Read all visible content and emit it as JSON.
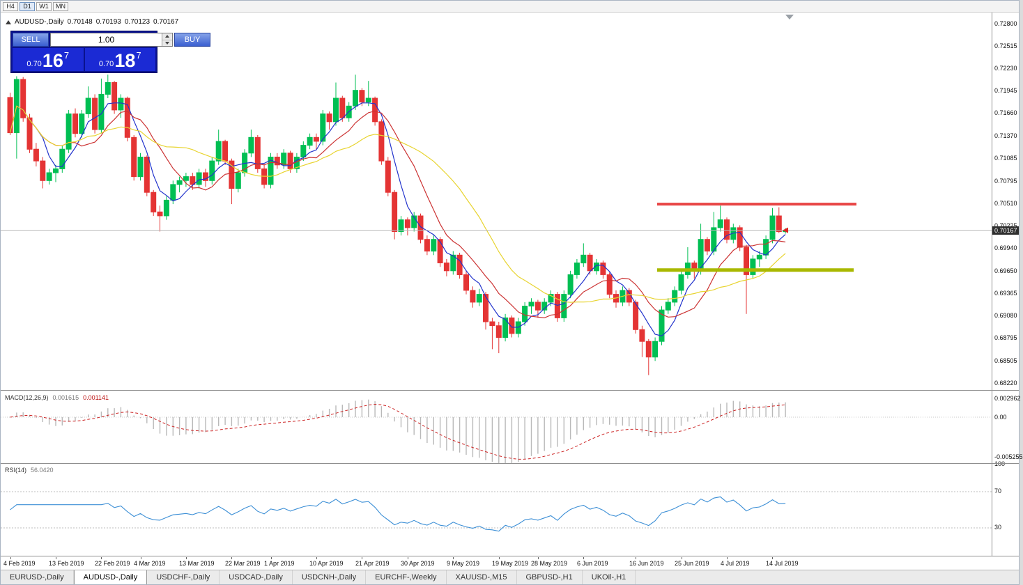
{
  "toolbar": {
    "timeframes": [
      {
        "label": "H4",
        "active": false
      },
      {
        "label": "D1",
        "active": true
      },
      {
        "label": "W1",
        "active": false
      },
      {
        "label": "MN",
        "active": false
      }
    ]
  },
  "chart_header": {
    "symbol": "AUDUSD-,Daily",
    "open": "0.70148",
    "high": "0.70193",
    "low": "0.70123",
    "close": "0.70167"
  },
  "trade_panel": {
    "sell_label": "SELL",
    "buy_label": "BUY",
    "volume": "1.00",
    "sell": {
      "prefix": "0.70",
      "big": "16",
      "sup": "7"
    },
    "buy": {
      "prefix": "0.70",
      "big": "18",
      "sup": "7"
    }
  },
  "price_axis": {
    "labels": [
      "0.72800",
      "0.72515",
      "0.72230",
      "0.71945",
      "0.71660",
      "0.71370",
      "0.71085",
      "0.70795",
      "0.70510",
      "0.70225",
      "0.69940",
      "0.69650",
      "0.69365",
      "0.69080",
      "0.68795",
      "0.68505",
      "0.68220"
    ],
    "current": "0.70167"
  },
  "macd": {
    "name_label": "MACD(12,26,9)",
    "value": "0.001615",
    "signal_value": "0.001141",
    "axis_top": "0.002962",
    "axis_zero": "0.00",
    "axis_bottom": "-0.005255",
    "scale_max": 0.002962,
    "scale_min": -0.005255
  },
  "rsi": {
    "name_label": "RSI(14)",
    "value": "56.0420",
    "period": 14,
    "levels": [
      70,
      30
    ],
    "axis_labels": [
      {
        "text": "100",
        "value": 100
      },
      {
        "text": "70",
        "value": 70
      },
      {
        "text": "30",
        "value": 30
      }
    ]
  },
  "date_axis": {
    "labels": [
      {
        "text": "4 Feb 2019",
        "bar": 0
      },
      {
        "text": "13 Feb 2019",
        "bar": 7
      },
      {
        "text": "22 Feb 2019",
        "bar": 14
      },
      {
        "text": "4 Mar 2019",
        "bar": 20
      },
      {
        "text": "13 Mar 2019",
        "bar": 27
      },
      {
        "text": "22 Mar 2019",
        "bar": 34
      },
      {
        "text": "1 Apr 2019",
        "bar": 40
      },
      {
        "text": "10 Apr 2019",
        "bar": 47
      },
      {
        "text": "21 Apr 2019",
        "bar": 54
      },
      {
        "text": "30 Apr 2019",
        "bar": 61
      },
      {
        "text": "9 May 2019",
        "bar": 68
      },
      {
        "text": "19 May 2019",
        "bar": 75
      },
      {
        "text": "28 May 2019",
        "bar": 81
      },
      {
        "text": "6 Jun 2019",
        "bar": 88
      },
      {
        "text": "16 Jun 2019",
        "bar": 96
      },
      {
        "text": "25 Jun 2019",
        "bar": 103
      },
      {
        "text": "4 Jul 2019",
        "bar": 110
      },
      {
        "text": "14 Jul 2019",
        "bar": 117
      }
    ]
  },
  "tabs": [
    {
      "label": "EURUSD-,Daily",
      "active": false
    },
    {
      "label": "AUDUSD-,Daily",
      "active": true
    },
    {
      "label": "USDCHF-,Daily",
      "active": false
    },
    {
      "label": "USDCAD-,Daily",
      "active": false
    },
    {
      "label": "USDCNH-,Daily",
      "active": false
    },
    {
      "label": "EURCHF-,Weekly",
      "active": false
    },
    {
      "label": "XAUUSD-,M15",
      "active": false
    },
    {
      "label": "GBPUSD-,H1",
      "active": false
    },
    {
      "label": "UKOil-,H1",
      "active": false
    }
  ],
  "colors": {
    "bull": "#00bf53",
    "bear": "#e43434",
    "ma_fast": "#2233cc",
    "ma_mid": "#cc3333",
    "ma_slow": "#e8d430",
    "resistance": "#e84545",
    "support": "#a9b800",
    "macd_hist": "#b9b9b9",
    "macd_signal": "#cc2222",
    "rsi_line": "#3c8fd6",
    "price_line": "#b8b8b8",
    "price_tag_bg": "#2e2e2e"
  },
  "chart_data": {
    "type": "candlestick",
    "symbol": "AUDUSD",
    "timeframe": "Daily",
    "ylim": [
      0.6822,
      0.728
    ],
    "current_price": 0.70167,
    "ma": [
      {
        "name": "fast",
        "period": 5,
        "color": "#2233cc"
      },
      {
        "name": "mid",
        "period": 10,
        "color": "#cc3333"
      },
      {
        "name": "slow",
        "period": 20,
        "color": "#e8d430"
      }
    ],
    "hlines": [
      {
        "name": "resistance",
        "price": 0.705,
        "x1": 942,
        "x2": 1228,
        "color": "#e84545",
        "width": 4
      },
      {
        "name": "support",
        "price": 0.6966,
        "x1": 942,
        "x2": 1224,
        "color": "#a9b800",
        "width": 5
      }
    ],
    "candles": [
      [
        0.7186,
        0.7192,
        0.7138,
        0.7141
      ],
      [
        0.7141,
        0.7213,
        0.7108,
        0.7209
      ],
      [
        0.7209,
        0.7212,
        0.7155,
        0.716
      ],
      [
        0.716,
        0.7165,
        0.7115,
        0.712
      ],
      [
        0.712,
        0.7128,
        0.7098,
        0.7105
      ],
      [
        0.7105,
        0.711,
        0.707,
        0.708
      ],
      [
        0.708,
        0.7095,
        0.7075,
        0.709
      ],
      [
        0.709,
        0.71,
        0.7078,
        0.7095
      ],
      [
        0.7095,
        0.7125,
        0.709,
        0.712
      ],
      [
        0.712,
        0.717,
        0.7115,
        0.7165
      ],
      [
        0.7165,
        0.7172,
        0.7135,
        0.714
      ],
      [
        0.714,
        0.717,
        0.7135,
        0.7165
      ],
      [
        0.7165,
        0.72,
        0.716,
        0.7185
      ],
      [
        0.7185,
        0.719,
        0.714,
        0.7145
      ],
      [
        0.7145,
        0.721,
        0.714,
        0.719
      ],
      [
        0.719,
        0.7215,
        0.7185,
        0.7205
      ],
      [
        0.7205,
        0.7207,
        0.7165,
        0.717
      ],
      [
        0.717,
        0.719,
        0.716,
        0.7185
      ],
      [
        0.7185,
        0.7187,
        0.713,
        0.7135
      ],
      [
        0.7135,
        0.7138,
        0.708,
        0.7085
      ],
      [
        0.7085,
        0.7115,
        0.708,
        0.711
      ],
      [
        0.711,
        0.7112,
        0.706,
        0.7065
      ],
      [
        0.7065,
        0.7068,
        0.7035,
        0.704
      ],
      [
        0.704,
        0.7048,
        0.7015,
        0.7035
      ],
      [
        0.7035,
        0.706,
        0.703,
        0.7055
      ],
      [
        0.7055,
        0.708,
        0.705,
        0.7075
      ],
      [
        0.7075,
        0.7085,
        0.7065,
        0.708
      ],
      [
        0.708,
        0.709,
        0.7072,
        0.7085
      ],
      [
        0.7085,
        0.709,
        0.7068,
        0.7075
      ],
      [
        0.7075,
        0.7095,
        0.707,
        0.709
      ],
      [
        0.709,
        0.7095,
        0.7072,
        0.708
      ],
      [
        0.708,
        0.711,
        0.7075,
        0.7105
      ],
      [
        0.7105,
        0.7145,
        0.71,
        0.713
      ],
      [
        0.713,
        0.7132,
        0.71,
        0.7105
      ],
      [
        0.7105,
        0.7108,
        0.705,
        0.707
      ],
      [
        0.707,
        0.7095,
        0.7065,
        0.709
      ],
      [
        0.709,
        0.712,
        0.7085,
        0.7115
      ],
      [
        0.7115,
        0.7145,
        0.711,
        0.7135
      ],
      [
        0.7135,
        0.7138,
        0.709,
        0.7095
      ],
      [
        0.7095,
        0.71,
        0.707,
        0.7075
      ],
      [
        0.7075,
        0.7115,
        0.707,
        0.711
      ],
      [
        0.711,
        0.7115,
        0.7095,
        0.71
      ],
      [
        0.71,
        0.712,
        0.7095,
        0.7115
      ],
      [
        0.7115,
        0.7118,
        0.709,
        0.7095
      ],
      [
        0.7095,
        0.7115,
        0.709,
        0.711
      ],
      [
        0.711,
        0.713,
        0.7105,
        0.7125
      ],
      [
        0.7125,
        0.714,
        0.712,
        0.7135
      ],
      [
        0.7135,
        0.714,
        0.712,
        0.713
      ],
      [
        0.713,
        0.717,
        0.7125,
        0.7165
      ],
      [
        0.7165,
        0.7168,
        0.7145,
        0.7155
      ],
      [
        0.7155,
        0.7205,
        0.715,
        0.7185
      ],
      [
        0.7185,
        0.7188,
        0.7155,
        0.716
      ],
      [
        0.716,
        0.718,
        0.7155,
        0.7175
      ],
      [
        0.7175,
        0.7215,
        0.717,
        0.7195
      ],
      [
        0.7195,
        0.7198,
        0.7175,
        0.718
      ],
      [
        0.718,
        0.7207,
        0.7175,
        0.7185
      ],
      [
        0.7185,
        0.7187,
        0.715,
        0.7155
      ],
      [
        0.7155,
        0.7158,
        0.71,
        0.7105
      ],
      [
        0.7105,
        0.711,
        0.706,
        0.7065
      ],
      [
        0.7065,
        0.7068,
        0.7005,
        0.7015
      ],
      [
        0.7015,
        0.7035,
        0.701,
        0.703
      ],
      [
        0.703,
        0.7033,
        0.701,
        0.702
      ],
      [
        0.702,
        0.704,
        0.7015,
        0.7035
      ],
      [
        0.7035,
        0.7038,
        0.7,
        0.7005
      ],
      [
        0.7005,
        0.701,
        0.6985,
        0.699
      ],
      [
        0.699,
        0.701,
        0.6985,
        0.7005
      ],
      [
        0.7005,
        0.7008,
        0.697,
        0.6975
      ],
      [
        0.6975,
        0.698,
        0.6958,
        0.6965
      ],
      [
        0.6965,
        0.699,
        0.696,
        0.6985
      ],
      [
        0.6985,
        0.6988,
        0.6955,
        0.696
      ],
      [
        0.696,
        0.6965,
        0.6935,
        0.694
      ],
      [
        0.694,
        0.6945,
        0.6918,
        0.6925
      ],
      [
        0.6925,
        0.6942,
        0.692,
        0.6935
      ],
      [
        0.6935,
        0.6938,
        0.689,
        0.69
      ],
      [
        0.69,
        0.6905,
        0.6865,
        0.6895
      ],
      [
        0.6895,
        0.69,
        0.686,
        0.688
      ],
      [
        0.688,
        0.691,
        0.6875,
        0.6905
      ],
      [
        0.6905,
        0.6908,
        0.688,
        0.6885
      ],
      [
        0.6885,
        0.6905,
        0.688,
        0.69
      ],
      [
        0.69,
        0.6925,
        0.6895,
        0.692
      ],
      [
        0.692,
        0.693,
        0.691,
        0.6925
      ],
      [
        0.6925,
        0.6928,
        0.6905,
        0.6915
      ],
      [
        0.6915,
        0.693,
        0.691,
        0.6925
      ],
      [
        0.6925,
        0.694,
        0.692,
        0.6935
      ],
      [
        0.6935,
        0.6938,
        0.69,
        0.6905
      ],
      [
        0.6905,
        0.694,
        0.69,
        0.6935
      ],
      [
        0.6935,
        0.6965,
        0.693,
        0.696
      ],
      [
        0.696,
        0.698,
        0.6955,
        0.6975
      ],
      [
        0.6975,
        0.7,
        0.697,
        0.6985
      ],
      [
        0.6985,
        0.6988,
        0.696,
        0.6965
      ],
      [
        0.6965,
        0.698,
        0.696,
        0.6975
      ],
      [
        0.6975,
        0.6978,
        0.6955,
        0.696
      ],
      [
        0.696,
        0.6963,
        0.693,
        0.6935
      ],
      [
        0.6935,
        0.694,
        0.6918,
        0.6925
      ],
      [
        0.6925,
        0.6945,
        0.692,
        0.694
      ],
      [
        0.694,
        0.6943,
        0.692,
        0.6925
      ],
      [
        0.6925,
        0.6928,
        0.6885,
        0.689
      ],
      [
        0.689,
        0.6895,
        0.6855,
        0.6875
      ],
      [
        0.6875,
        0.6878,
        0.6832,
        0.6855
      ],
      [
        0.6855,
        0.688,
        0.685,
        0.6875
      ],
      [
        0.6875,
        0.692,
        0.687,
        0.6915
      ],
      [
        0.6915,
        0.693,
        0.691,
        0.6925
      ],
      [
        0.6925,
        0.6945,
        0.692,
        0.694
      ],
      [
        0.694,
        0.6965,
        0.6935,
        0.696
      ],
      [
        0.696,
        0.6995,
        0.6955,
        0.6975
      ],
      [
        0.6975,
        0.6978,
        0.6955,
        0.6965
      ],
      [
        0.6965,
        0.7025,
        0.696,
        0.7005
      ],
      [
        0.7005,
        0.7008,
        0.6985,
        0.699
      ],
      [
        0.699,
        0.704,
        0.6985,
        0.702
      ],
      [
        0.702,
        0.7048,
        0.7015,
        0.703
      ],
      [
        0.703,
        0.7033,
        0.7,
        0.7005
      ],
      [
        0.7005,
        0.7025,
        0.7,
        0.702
      ],
      [
        0.702,
        0.7023,
        0.699,
        0.6995
      ],
      [
        0.6995,
        0.6998,
        0.691,
        0.696
      ],
      [
        0.696,
        0.6985,
        0.6955,
        0.698
      ],
      [
        0.698,
        0.699,
        0.697,
        0.6985
      ],
      [
        0.6985,
        0.701,
        0.698,
        0.7005
      ],
      [
        0.7005,
        0.7045,
        0.7,
        0.7035
      ],
      [
        0.7035,
        0.7046,
        0.7013,
        0.7015
      ],
      [
        0.70148,
        0.70193,
        0.70123,
        0.70167
      ]
    ]
  }
}
